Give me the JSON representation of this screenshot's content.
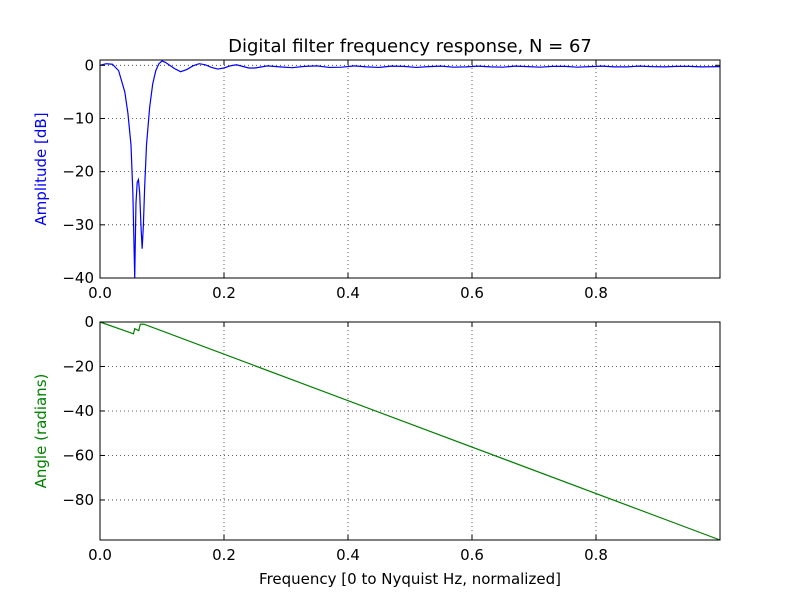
{
  "chart_data": [
    {
      "type": "line",
      "title": "Digital filter frequency response, N = 67",
      "xlabel": "",
      "ylabel": "Amplitude [dB]",
      "xlim": [
        0.0,
        1.0
      ],
      "ylim": [
        -40,
        1
      ],
      "xticks": [
        "0.0",
        "0.2",
        "0.4",
        "0.6",
        "0.8"
      ],
      "yticks": [
        "0",
        "−10",
        "−20",
        "−30",
        "−40"
      ],
      "grid": true,
      "color": "#0000ff",
      "series": [
        {
          "x": [
            0.0,
            0.01,
            0.02,
            0.03,
            0.04,
            0.045,
            0.05,
            0.053,
            0.056,
            0.058,
            0.06,
            0.062,
            0.064,
            0.066,
            0.068,
            0.07,
            0.072,
            0.075,
            0.08,
            0.085,
            0.09,
            0.095,
            0.1,
            0.105,
            0.11,
            0.12,
            0.13,
            0.14,
            0.15,
            0.16,
            0.17,
            0.18,
            0.19,
            0.2,
            0.21,
            0.22,
            0.23,
            0.24,
            0.25,
            0.27,
            0.29,
            0.31,
            0.33,
            0.35,
            0.37,
            0.39,
            0.41,
            0.43,
            0.45,
            0.47,
            0.49,
            0.51,
            0.53,
            0.55,
            0.57,
            0.59,
            0.61,
            0.63,
            0.65,
            0.67,
            0.69,
            0.71,
            0.73,
            0.75,
            0.77,
            0.79,
            0.81,
            0.83,
            0.85,
            0.87,
            0.89,
            0.91,
            0.93,
            0.95,
            0.97,
            1.0
          ],
          "y": [
            0,
            0.3,
            0.2,
            -1.0,
            -5,
            -9,
            -15,
            -24,
            -40,
            -26,
            -22,
            -21.5,
            -24,
            -30,
            -34.5,
            -30,
            -23,
            -15,
            -8,
            -3.5,
            -1,
            0.3,
            0.8,
            0.6,
            0.2,
            -0.6,
            -1.2,
            -0.8,
            -0.1,
            0.3,
            0.1,
            -0.4,
            -0.7,
            -0.5,
            -0.1,
            0.1,
            -0.2,
            -0.5,
            -0.5,
            -0.1,
            -0.3,
            -0.45,
            -0.2,
            -0.1,
            -0.4,
            -0.35,
            -0.1,
            -0.3,
            -0.4,
            -0.15,
            -0.2,
            -0.4,
            -0.25,
            -0.15,
            -0.35,
            -0.3,
            -0.15,
            -0.3,
            -0.35,
            -0.15,
            -0.25,
            -0.35,
            -0.2,
            -0.2,
            -0.35,
            -0.25,
            -0.15,
            -0.3,
            -0.3,
            -0.15,
            -0.25,
            -0.3,
            -0.2,
            -0.2,
            -0.3,
            -0.25
          ]
        }
      ]
    },
    {
      "type": "line",
      "title": "",
      "xlabel": "Frequency [0 to Nyquist Hz, normalized]",
      "ylabel": "Angle (radians)",
      "xlim": [
        0.0,
        1.0
      ],
      "ylim": [
        -98,
        0
      ],
      "xticks": [
        "0.0",
        "0.2",
        "0.4",
        "0.6",
        "0.8"
      ],
      "yticks": [
        "0",
        "−20",
        "−40",
        "−60",
        "−80"
      ],
      "grid": true,
      "color": "#008000",
      "series": [
        {
          "x": [
            0.0,
            0.054,
            0.056,
            0.0625,
            0.065,
            0.0695,
            0.071,
            1.0
          ],
          "y": [
            0,
            -5.3,
            -3.0,
            -3.9,
            -1.0,
            -1.0,
            -1.0,
            -98.0
          ]
        }
      ]
    }
  ]
}
